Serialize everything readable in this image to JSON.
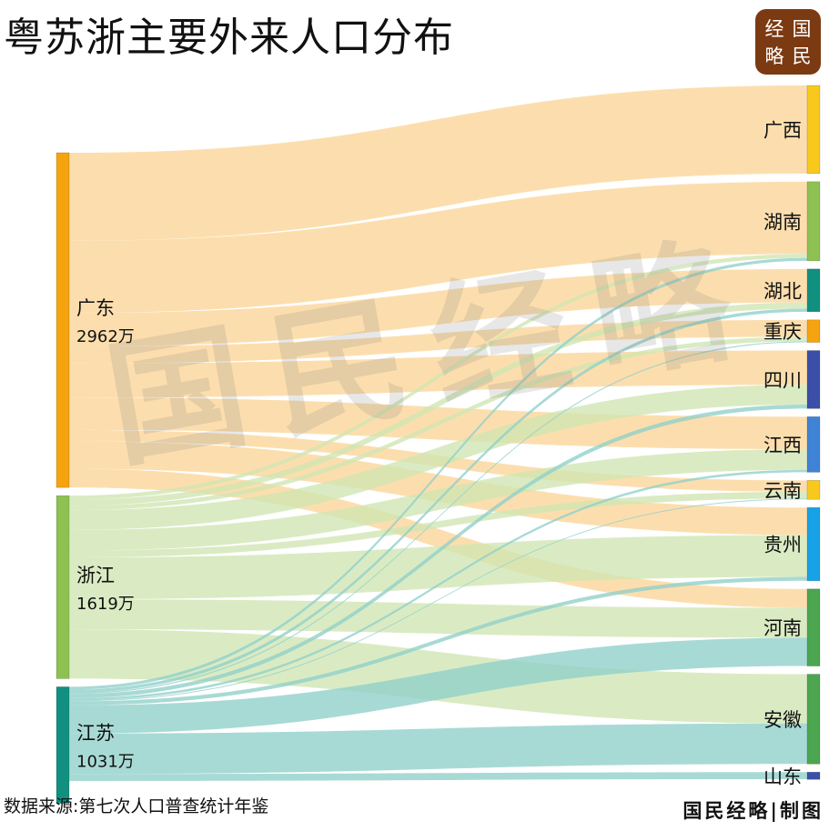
{
  "header": {
    "title": "粤苏浙主要外来人口分布"
  },
  "logo": {
    "chars": [
      "经",
      "国",
      "略",
      "民"
    ],
    "color": "#7b3a12"
  },
  "watermark": {
    "text": "国民经略"
  },
  "footer": {
    "source": "数据来源:第七次人口普查统计年鉴",
    "brand": "国民经略|制图"
  },
  "chart_data": {
    "type": "sankey",
    "title": "粤苏浙主要外来人口分布",
    "unit": "万",
    "sources": [
      {
        "name": "广东",
        "value": 2962,
        "value_label": "2962万",
        "color": "#f5a30f",
        "link_color": "#fbd597"
      },
      {
        "name": "浙江",
        "value": 1619,
        "value_label": "1619万",
        "color": "#8dc152",
        "link_color": "#cfe6b2"
      },
      {
        "name": "江苏",
        "value": 1031,
        "value_label": "1031万",
        "color": "#11907f",
        "link_color": "#8fd0c9"
      }
    ],
    "targets": [
      {
        "name": "广西",
        "color": "#f8c81c"
      },
      {
        "name": "湖南",
        "color": "#8dc152"
      },
      {
        "name": "湖北",
        "color": "#11907f"
      },
      {
        "name": "重庆",
        "color": "#f5a30f"
      },
      {
        "name": "四川",
        "color": "#3b4fa8"
      },
      {
        "name": "江西",
        "color": "#3f83d6"
      },
      {
        "name": "云南",
        "color": "#f8c81c"
      },
      {
        "name": "贵州",
        "color": "#16a2e6"
      },
      {
        "name": "河南",
        "color": "#4ba64f"
      },
      {
        "name": "安徽",
        "color": "#4ba64f"
      },
      {
        "name": "山东",
        "color": "#3b4fa8"
      }
    ],
    "flows": [
      {
        "source": "广东",
        "target": "广西",
        "value": 779
      },
      {
        "source": "广东",
        "target": "湖南",
        "value": 639
      },
      {
        "source": "广东",
        "target": "湖北",
        "value": 296
      },
      {
        "source": "广东",
        "target": "重庆",
        "value": 149
      },
      {
        "source": "广东",
        "target": "四川",
        "value": 303
      },
      {
        "source": "广东",
        "target": "江西",
        "value": 287
      },
      {
        "source": "广东",
        "target": "云南",
        "value": 100
      },
      {
        "source": "广东",
        "target": "贵州",
        "value": 243
      },
      {
        "source": "广东",
        "target": "河南",
        "value": 166
      },
      {
        "source": "浙江",
        "target": "湖南",
        "value": 35
      },
      {
        "source": "浙江",
        "target": "湖北",
        "value": 54
      },
      {
        "source": "浙江",
        "target": "重庆",
        "value": 40
      },
      {
        "source": "浙江",
        "target": "四川",
        "value": 174
      },
      {
        "source": "浙江",
        "target": "江西",
        "value": 183
      },
      {
        "source": "浙江",
        "target": "云南",
        "value": 60
      },
      {
        "source": "浙江",
        "target": "贵州",
        "value": 371
      },
      {
        "source": "浙江",
        "target": "河南",
        "value": 266
      },
      {
        "source": "浙江",
        "target": "安徽",
        "value": 436
      },
      {
        "source": "江苏",
        "target": "湖南",
        "value": 26
      },
      {
        "source": "江苏",
        "target": "湖北",
        "value": 28
      },
      {
        "source": "江苏",
        "target": "重庆",
        "value": 10
      },
      {
        "source": "江苏",
        "target": "四川",
        "value": 36
      },
      {
        "source": "江苏",
        "target": "江西",
        "value": 21
      },
      {
        "source": "江苏",
        "target": "云南",
        "value": 8
      },
      {
        "source": "江苏",
        "target": "贵州",
        "value": 34
      },
      {
        "source": "江苏",
        "target": "河南",
        "value": 250
      },
      {
        "source": "江苏",
        "target": "安徽",
        "value": 358
      },
      {
        "source": "江苏",
        "target": "山东",
        "value": 62
      }
    ]
  }
}
